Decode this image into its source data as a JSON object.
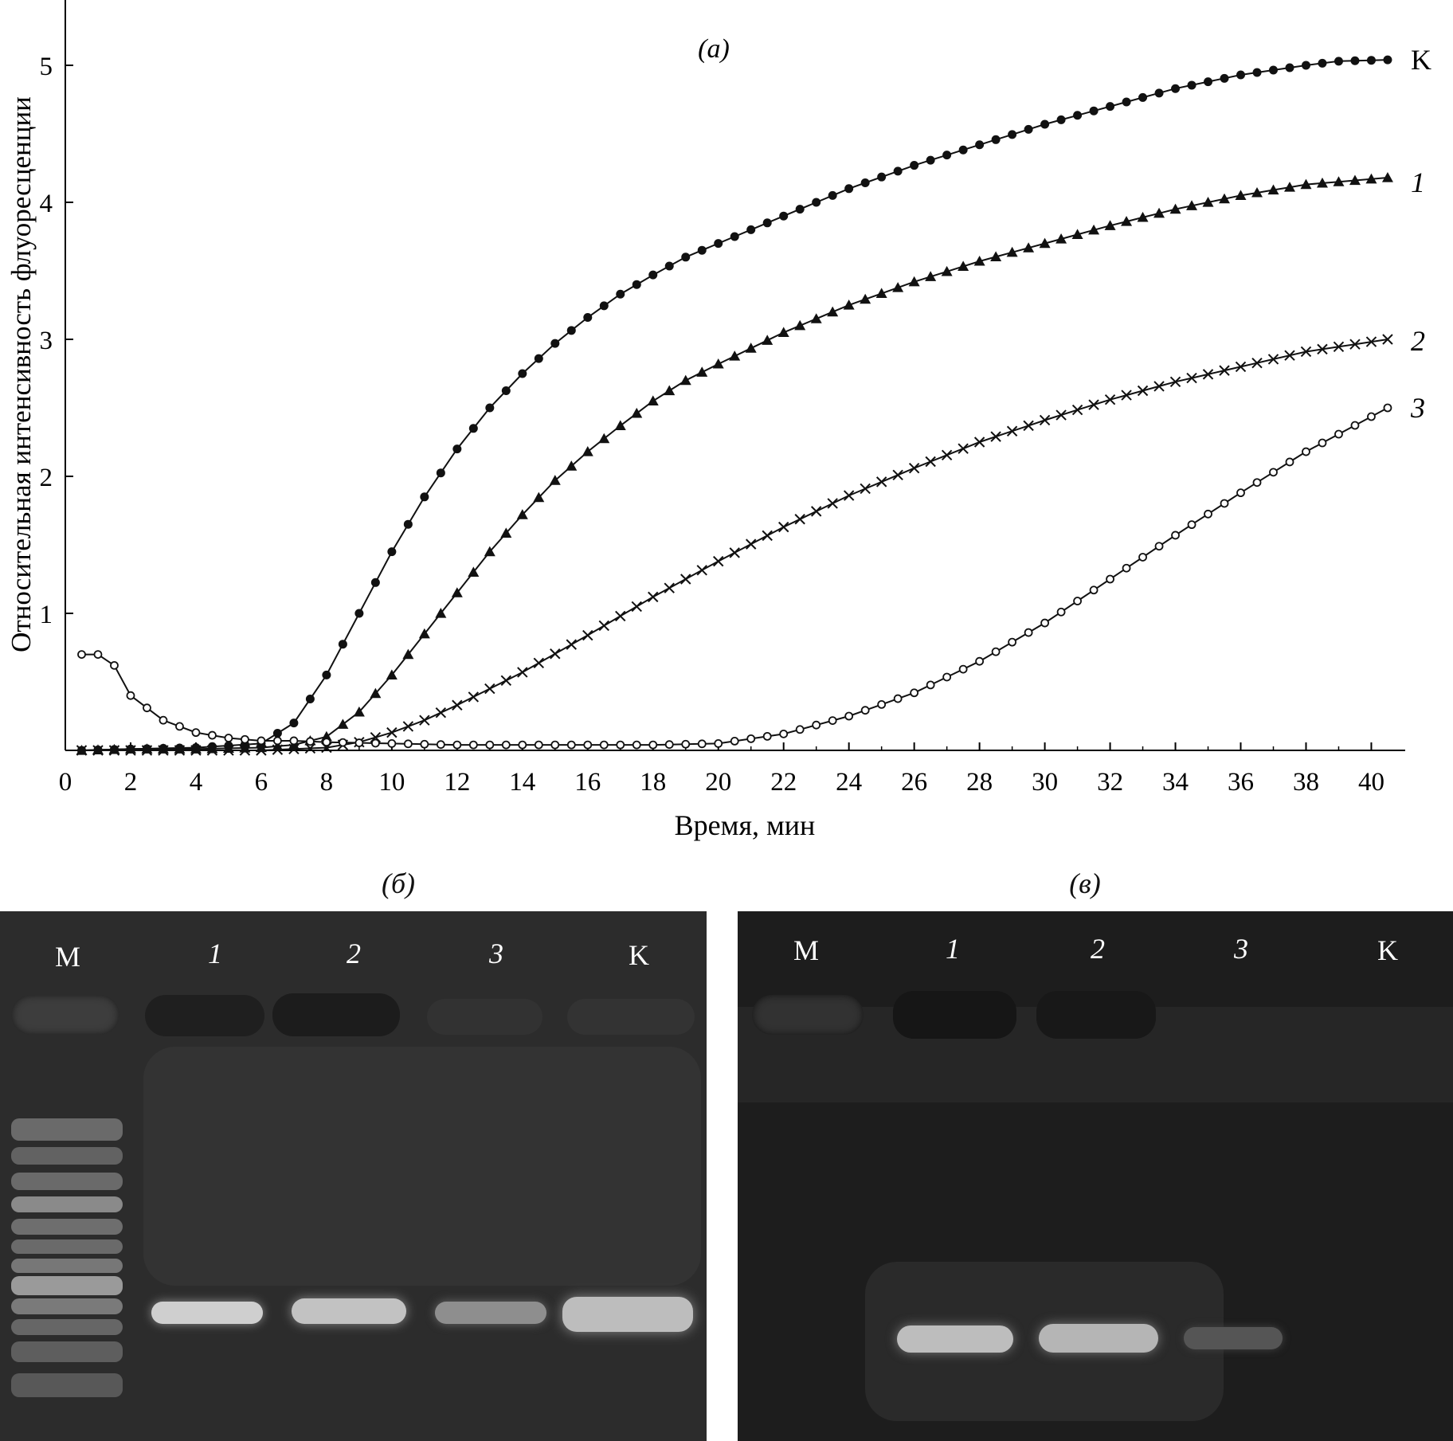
{
  "chart_data": {
    "type": "line",
    "panel_label": "(a)",
    "xlabel": "Время, мин",
    "ylabel": "Относительная интенсивность флуоресценции",
    "xlim": [
      0,
      41
    ],
    "ylim": [
      0,
      5.4
    ],
    "xticks": [
      "0",
      "2",
      "4",
      "6",
      "8",
      "10",
      "12",
      "14",
      "16",
      "18",
      "20",
      "22",
      "24",
      "26",
      "28",
      "30",
      "32",
      "34",
      "36",
      "38",
      "40"
    ],
    "yticks": [
      "1",
      "2",
      "3",
      "4",
      "5"
    ],
    "series": [
      {
        "name": "K",
        "marker": "filled-circle",
        "x": [
          0.5,
          2,
          4,
          6,
          7,
          8,
          9,
          10,
          11,
          12,
          13,
          14,
          15,
          16,
          17,
          18,
          19,
          20,
          22,
          24,
          26,
          28,
          30,
          32,
          34,
          36,
          38,
          39,
          40.5
        ],
        "y": [
          0.0,
          0.01,
          0.02,
          0.05,
          0.2,
          0.55,
          1.0,
          1.45,
          1.85,
          2.2,
          2.5,
          2.75,
          2.97,
          3.16,
          3.33,
          3.47,
          3.6,
          3.7,
          3.9,
          4.1,
          4.27,
          4.42,
          4.57,
          4.7,
          4.83,
          4.93,
          5.0,
          5.03,
          5.04
        ]
      },
      {
        "name": "1",
        "marker": "filled-triangle",
        "x": [
          0.5,
          2,
          4,
          6,
          7,
          8,
          9,
          10,
          11,
          12,
          13,
          14,
          15,
          16,
          17,
          18,
          19,
          20,
          22,
          24,
          26,
          28,
          30,
          32,
          34,
          36,
          38,
          40.5
        ],
        "y": [
          0.0,
          0.01,
          0.01,
          0.02,
          0.04,
          0.1,
          0.28,
          0.55,
          0.85,
          1.15,
          1.45,
          1.72,
          1.97,
          2.18,
          2.37,
          2.55,
          2.7,
          2.82,
          3.05,
          3.25,
          3.42,
          3.57,
          3.7,
          3.83,
          3.95,
          4.05,
          4.13,
          4.18
        ]
      },
      {
        "name": "2",
        "marker": "x",
        "x": [
          0.5,
          2,
          4,
          6,
          8,
          9,
          10,
          11,
          12,
          13,
          14,
          16,
          18,
          20,
          22,
          24,
          26,
          28,
          30,
          32,
          34,
          36,
          38,
          40.5
        ],
        "y": [
          0.0,
          0.0,
          0.0,
          0.0,
          0.02,
          0.06,
          0.13,
          0.22,
          0.33,
          0.45,
          0.57,
          0.84,
          1.12,
          1.38,
          1.63,
          1.86,
          2.06,
          2.25,
          2.41,
          2.56,
          2.69,
          2.8,
          2.91,
          3.0
        ]
      },
      {
        "name": "3",
        "marker": "open-circle",
        "x": [
          0.5,
          1,
          1.5,
          2,
          3,
          4,
          5,
          6,
          7,
          8,
          10,
          12,
          14,
          16,
          18,
          20,
          22,
          24,
          26,
          28,
          30,
          32,
          34,
          36,
          38,
          40.5
        ],
        "y": [
          0.7,
          0.7,
          0.62,
          0.4,
          0.22,
          0.13,
          0.09,
          0.07,
          0.07,
          0.06,
          0.05,
          0.04,
          0.04,
          0.04,
          0.04,
          0.05,
          0.12,
          0.25,
          0.42,
          0.65,
          0.93,
          1.25,
          1.57,
          1.88,
          2.18,
          2.5
        ]
      }
    ]
  },
  "gels": [
    {
      "panel_label": "(б)",
      "lanes": [
        "M",
        "1",
        "2",
        "3",
        "K"
      ]
    },
    {
      "panel_label": "(в)",
      "lanes": [
        "M",
        "1",
        "2",
        "3",
        "K"
      ]
    }
  ]
}
